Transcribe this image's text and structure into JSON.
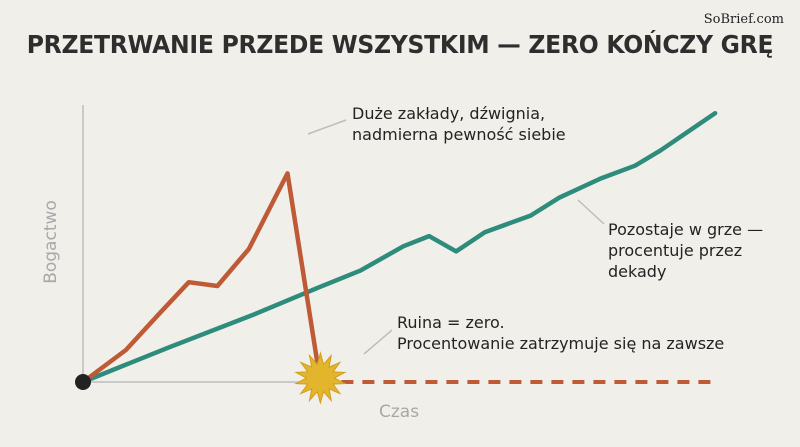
{
  "brand": "SoBrief.com",
  "title": "PRZETRWANIE PRZEDE WSZYSTKIM — ZERO KOŃCZY GRĘ",
  "colors": {
    "background": "#f1efea",
    "risky": "#bf5a36",
    "steady": "#2e8c7c",
    "burst": "#e3b52c",
    "axis": "#c9c9c9",
    "origin": "#222222"
  },
  "chart_data": {
    "type": "line",
    "title": "PRZETRWANIE PRZEDE WSZYSTKIM — ZERO KOŃCZY GRĘ",
    "xlabel": "Czas",
    "ylabel": "Bogactwo",
    "axis_ticks": "none",
    "grid": false,
    "series": [
      {
        "key": "risky",
        "x": [
          0,
          3,
          5.3,
          7.4,
          9.4,
          11.6,
          14.3,
          16.6
        ],
        "y": [
          0,
          2.5,
          5.3,
          7.8,
          7.5,
          10.4,
          16.3,
          0
        ]
      },
      {
        "key": "steady",
        "x": [
          0,
          6,
          12,
          16.5,
          19.4,
          22.4,
          24.2,
          26.1,
          28.1,
          31.3,
          33.3,
          36.2,
          38.6,
          40.4,
          44.2
        ],
        "y": [
          0,
          2.7,
          5.3,
          7.4,
          8.7,
          10.6,
          11.4,
          10.2,
          11.7,
          13.0,
          14.4,
          15.9,
          16.9,
          18.1,
          21.0
        ]
      },
      {
        "key": "ruin",
        "style": "dashed",
        "x": [
          16.6,
          44.2
        ],
        "y": [
          0,
          0
        ]
      }
    ],
    "events": [
      {
        "name": "ruin-burst",
        "x": 16.6,
        "y": 0
      }
    ],
    "annotations": [
      {
        "key": "risky",
        "lines": [
          "Duże zakłady, dźwignia,",
          "nadmierna pewność siebie"
        ]
      },
      {
        "key": "steady",
        "lines": [
          "Pozostaje w grze —",
          "procentuje przez",
          "dekady"
        ]
      },
      {
        "key": "ruin",
        "lines": [
          "Ruina = zero.",
          "Procentowanie zatrzymuje się na zawsze"
        ]
      }
    ]
  }
}
